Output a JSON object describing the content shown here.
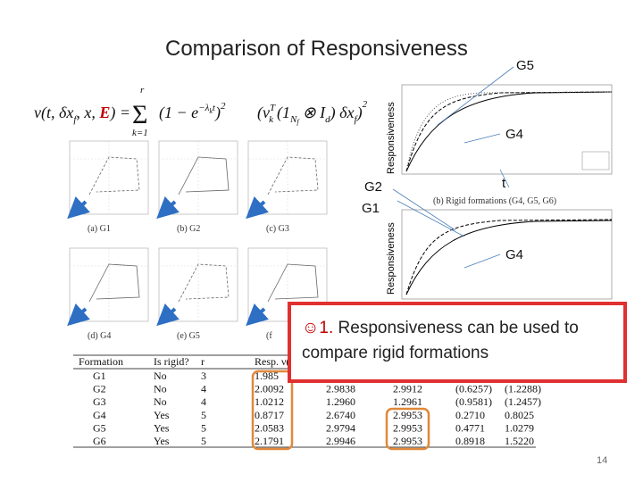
{
  "header": {
    "title": "Comparison of Responsiveness"
  },
  "formula": {
    "lhs": "v(t, δx",
    "lhs_sub": "f",
    "lhs_mid": ", x, ",
    "lhs_e": "E",
    "lhs_end": ") =",
    "sum": "Σ",
    "sum_top": "r",
    "sum_bottom": "k=1",
    "term1": "(1 − e",
    "term1_sup": "−λ",
    "term1_sup_k": "k",
    "term1_sup_t": "t",
    "term1_end": ")",
    "square1": "2",
    "term2": "(v",
    "term2_sup": "T",
    "term2_sub": "k",
    "term2_mid": "(1",
    "term2_mid_sub": "N",
    "term2_mid_sub2": "f",
    "term2_ot": "⊗ I",
    "term2_ot_sub": "d",
    "term2_end": ") δx",
    "term2_end_sub": "f",
    "term2_close": ")",
    "square2": "2"
  },
  "left_panel": {
    "captions": [
      "(a) G1",
      "(b) G2",
      "(c) G3",
      "(d) G4",
      "(e) G5",
      "(f"
    ]
  },
  "right_panel": {
    "y_label_top": "Responsiveness",
    "y_label_bottom": "Responsiveness",
    "caption": "(b) Rigid formations (G4, G5, G6)",
    "callout_g5": "G5",
    "callout_g4_top": "G4",
    "callout_t": "t",
    "callout_g2": "G2",
    "callout_g1": "G1",
    "callout_g4_bottom": "G4"
  },
  "callout": {
    "marker": "☺1.",
    "text_line1": "Responsiveness can be used to",
    "text_line2": "compare rigid formations"
  },
  "table": {
    "headers": [
      "Formation",
      "Is rigid?",
      "r",
      "Resp. ν(t ="
    ],
    "rows": [
      [
        "G1",
        "No",
        "3",
        "1.985"
      ],
      [
        "G2",
        "No",
        "4",
        "2.0092",
        "2.9838",
        "2.9912",
        "(0.6257)",
        "(1.2288)"
      ],
      [
        "G3",
        "No",
        "4",
        "1.0212",
        "1.2960",
        "1.2961",
        "(0.9581)",
        "(1.2457)"
      ],
      [
        "G4",
        "Yes",
        "5",
        "0.8717",
        "2.6740",
        "2.9953",
        "0.2710",
        "0.8025"
      ],
      [
        "G5",
        "Yes",
        "5",
        "2.0583",
        "2.9794",
        "2.9953",
        "0.4771",
        "1.0279"
      ],
      [
        "G6",
        "Yes",
        "5",
        "2.1791",
        "2.9946",
        "2.9953",
        "0.8918",
        "1.5220"
      ]
    ]
  },
  "footer": {
    "page_number": "14"
  }
}
